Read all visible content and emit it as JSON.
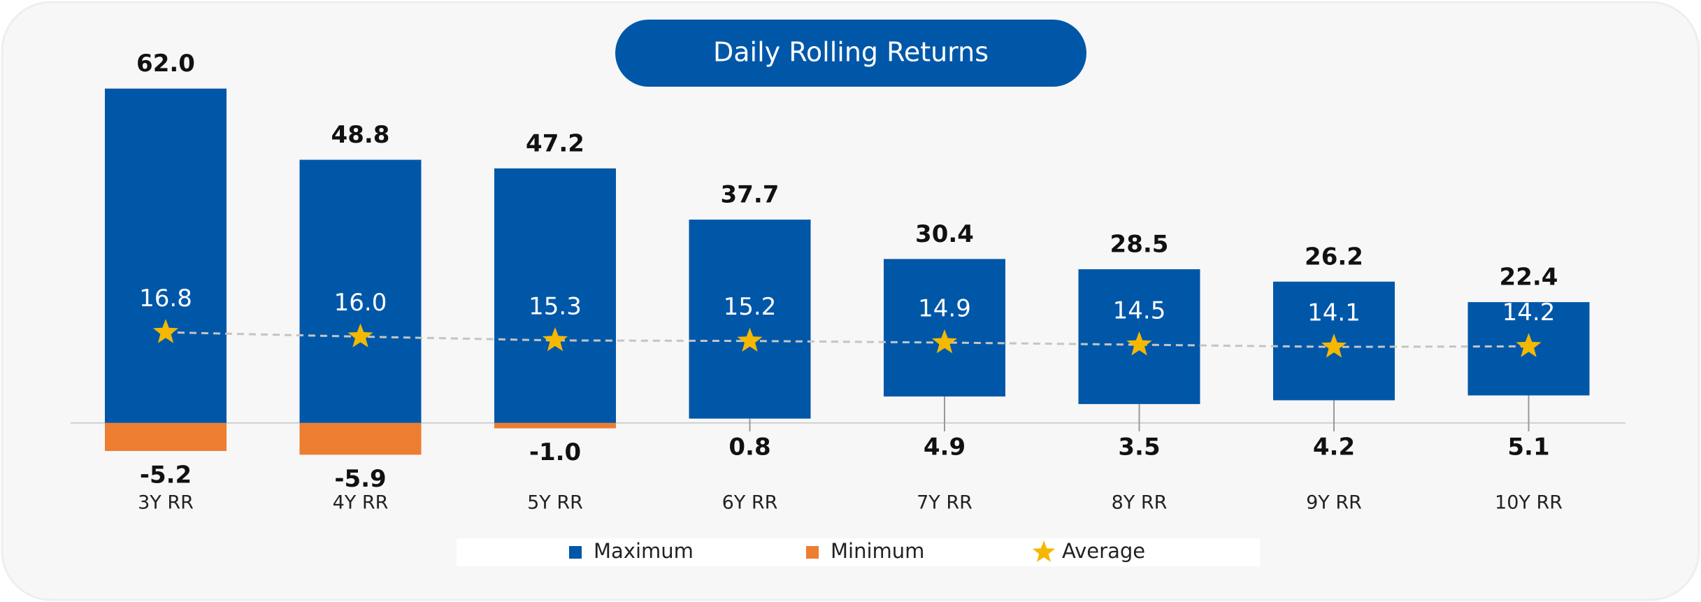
{
  "chart_data": {
    "type": "floating_bar",
    "title": "Daily Rolling Returns",
    "categories": [
      "3Y RR",
      "4Y RR",
      "5Y RR",
      "6Y RR",
      "7Y RR",
      "8Y RR",
      "9Y RR",
      "10Y RR"
    ],
    "series": [
      {
        "name": "Maximum",
        "color": "#0057a8",
        "values": [
          62.0,
          48.8,
          47.2,
          37.7,
          30.4,
          28.5,
          26.2,
          22.4
        ],
        "value_labels": [
          "62.0",
          "48.8",
          "47.2",
          "37.7",
          "30.4",
          "28.5",
          "26.2",
          "22.4"
        ]
      },
      {
        "name": "Minimum",
        "color": "#ed7d31",
        "values": [
          -5.2,
          -5.9,
          -1.0,
          0.8,
          4.9,
          3.5,
          4.2,
          5.1
        ],
        "value_labels": [
          "-5.2",
          "-5.9",
          "-1.0",
          "0.8",
          "4.9",
          "3.5",
          "4.2",
          "5.1"
        ]
      },
      {
        "name": "Average",
        "color": "#f5b800",
        "values": [
          16.8,
          16.0,
          15.3,
          15.2,
          14.9,
          14.5,
          14.1,
          14.2
        ],
        "value_labels": [
          "16.8",
          "16.0",
          "15.3",
          "15.2",
          "14.9",
          "14.5",
          "14.1",
          "14.2"
        ]
      }
    ],
    "ylim": [
      -10,
      70
    ]
  }
}
